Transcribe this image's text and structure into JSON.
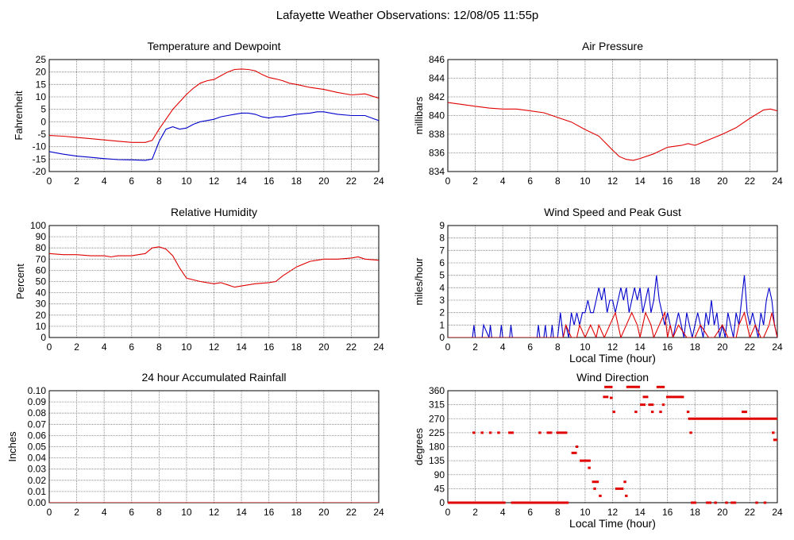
{
  "page": {
    "title": "Lafayette Weather Observations: 12/08/05 11:55p"
  },
  "colors": {
    "red": "#e00000",
    "blue": "#0000cc",
    "grid": "#777777",
    "frame": "#000000"
  },
  "chart_data": [
    {
      "id": "temp",
      "type": "line",
      "title": "Temperature and Dewpoint",
      "xlabel": "",
      "ylabel": "Fahrenheit",
      "xlim": [
        0,
        24
      ],
      "ylim": [
        -20,
        25
      ],
      "xticks": [
        0,
        2,
        4,
        6,
        8,
        10,
        12,
        14,
        16,
        18,
        20,
        22,
        24
      ],
      "yticks": [
        -20,
        -15,
        -10,
        -5,
        0,
        5,
        10,
        15,
        20,
        25
      ],
      "grid": true,
      "series": [
        {
          "color": "#e00000",
          "x": [
            0,
            1,
            2,
            3,
            4,
            5,
            6,
            7,
            7.5,
            8,
            8.5,
            9,
            9.5,
            10,
            10.5,
            11,
            11.5,
            12,
            12.5,
            13,
            13.5,
            14,
            14.5,
            15,
            15.5,
            16,
            16.5,
            17,
            17.5,
            18,
            19,
            20,
            21,
            22,
            23,
            24
          ],
          "y": [
            -5.5,
            -5.8,
            -6.3,
            -6.8,
            -7.3,
            -7.8,
            -8.3,
            -8.3,
            -7.5,
            -3,
            1,
            5,
            8,
            11,
            13.5,
            15.5,
            16.5,
            17,
            18.5,
            20,
            21,
            21.2,
            21,
            20.5,
            19,
            17.8,
            17.2,
            16.5,
            15.5,
            15,
            13.8,
            13,
            11.8,
            10.8,
            11.2,
            9.5
          ]
        },
        {
          "color": "#0000cc",
          "x": [
            0,
            1,
            2,
            3,
            4,
            5,
            6,
            7,
            7.5,
            8,
            8.5,
            9,
            9.5,
            10,
            10.5,
            11,
            11.5,
            12,
            12.5,
            13,
            13.5,
            14,
            14.5,
            15,
            15.5,
            16,
            16.5,
            17,
            18,
            19,
            19.5,
            20,
            20.5,
            21,
            22,
            23,
            24
          ],
          "y": [
            -12,
            -13,
            -13.8,
            -14.3,
            -14.8,
            -15.2,
            -15.3,
            -15.5,
            -15,
            -8,
            -3,
            -2,
            -3,
            -2.5,
            -1,
            0,
            0.5,
            1,
            2,
            2.5,
            3,
            3.5,
            3.5,
            3,
            2,
            1.5,
            2,
            2,
            3,
            3.5,
            4,
            4,
            3.5,
            3,
            2.5,
            2.5,
            0.5
          ]
        }
      ]
    },
    {
      "id": "pressure",
      "type": "line",
      "title": "Air Pressure",
      "xlabel": "",
      "ylabel": "millibars",
      "xlim": [
        0,
        24
      ],
      "ylim": [
        834,
        846
      ],
      "xticks": [
        0,
        2,
        4,
        6,
        8,
        10,
        12,
        14,
        16,
        18,
        20,
        22,
        24
      ],
      "yticks": [
        834,
        836,
        838,
        840,
        842,
        844,
        846
      ],
      "grid": true,
      "series": [
        {
          "color": "#e00000",
          "x": [
            0,
            1,
            2,
            3,
            4,
            5,
            6,
            7,
            8,
            9,
            10,
            11,
            12,
            12.5,
            13,
            13.5,
            14,
            15,
            16,
            17,
            17.5,
            18,
            19,
            20,
            21,
            22,
            23,
            23.5,
            24
          ],
          "y": [
            841.4,
            841.2,
            841,
            840.8,
            840.7,
            840.7,
            840.5,
            840.3,
            839.8,
            839.3,
            838.5,
            837.8,
            836.3,
            835.6,
            835.3,
            835.2,
            835.4,
            835.9,
            836.6,
            836.8,
            837,
            836.8,
            837.4,
            838,
            838.7,
            839.7,
            840.6,
            840.7,
            840.5
          ]
        }
      ]
    },
    {
      "id": "humidity",
      "type": "line",
      "title": "Relative Humidity",
      "xlabel": "",
      "ylabel": "Percent",
      "xlim": [
        0,
        24
      ],
      "ylim": [
        0,
        100
      ],
      "xticks": [
        0,
        2,
        4,
        6,
        8,
        10,
        12,
        14,
        16,
        18,
        20,
        22,
        24
      ],
      "yticks": [
        0,
        10,
        20,
        30,
        40,
        50,
        60,
        70,
        80,
        90,
        100
      ],
      "grid": true,
      "series": [
        {
          "color": "#e00000",
          "x": [
            0,
            1,
            2,
            3,
            4,
            4.5,
            5,
            6,
            7,
            7.5,
            8,
            8.5,
            9,
            9.5,
            10,
            11,
            12,
            12.5,
            13,
            13.5,
            14,
            15,
            16,
            16.5,
            17,
            18,
            19,
            20,
            21,
            22,
            22.5,
            23,
            24
          ],
          "y": [
            75,
            74,
            74,
            73,
            73,
            72,
            73,
            73,
            75,
            80,
            81,
            79,
            73,
            62,
            53,
            50,
            48,
            49,
            47,
            45,
            46,
            48,
            49,
            50,
            55,
            63,
            68,
            70,
            70,
            71,
            72,
            70,
            69
          ]
        }
      ]
    },
    {
      "id": "wind",
      "type": "line",
      "title": "Wind Speed and Peak Gust",
      "xlabel": "Local Time (hour)",
      "ylabel": "miles/hour",
      "xlim": [
        0,
        24
      ],
      "ylim": [
        0,
        9
      ],
      "xticks": [
        0,
        2,
        4,
        6,
        8,
        10,
        12,
        14,
        16,
        18,
        20,
        22,
        24
      ],
      "yticks": [
        0,
        1,
        2,
        3,
        4,
        5,
        6,
        7,
        8,
        9
      ],
      "grid": true,
      "series": [
        {
          "color": "#0000cc",
          "x": [
            0,
            1.8,
            1.9,
            2.0,
            2.5,
            2.6,
            3.0,
            3.1,
            3.2,
            3.8,
            3.9,
            4.0,
            4.5,
            4.6,
            4.7,
            5.0,
            6.0,
            6.5,
            6.6,
            6.7,
            7.0,
            7.1,
            7.2,
            7.5,
            7.6,
            7.7,
            8.0,
            8.2,
            8.4,
            8.6,
            8.8,
            9.0,
            9.2,
            9.4,
            9.6,
            9.8,
            10.0,
            10.2,
            10.4,
            10.6,
            10.8,
            11.0,
            11.2,
            11.4,
            11.6,
            11.8,
            12.0,
            12.2,
            12.4,
            12.6,
            12.8,
            13.0,
            13.2,
            13.4,
            13.6,
            13.8,
            14.0,
            14.2,
            14.4,
            14.6,
            14.8,
            15.0,
            15.2,
            15.4,
            15.6,
            15.8,
            16.0,
            16.2,
            16.4,
            16.6,
            16.8,
            17.0,
            17.2,
            17.4,
            17.6,
            17.8,
            18.0,
            18.2,
            18.4,
            18.6,
            18.8,
            19.0,
            19.2,
            19.4,
            19.6,
            19.8,
            20.0,
            20.2,
            20.4,
            20.6,
            20.8,
            21.0,
            21.2,
            21.4,
            21.6,
            21.8,
            22.0,
            22.2,
            22.4,
            22.6,
            22.8,
            23.0,
            23.2,
            23.4,
            23.6,
            23.8,
            24.0
          ],
          "y": [
            0,
            0,
            1,
            0,
            0,
            1,
            0,
            1,
            0,
            0,
            1,
            0,
            0,
            1,
            0,
            0,
            0,
            0,
            1,
            0,
            0,
            1,
            0,
            0,
            1,
            0,
            0,
            2,
            0,
            1,
            0,
            2,
            1,
            2,
            1,
            2,
            2,
            3,
            2,
            2,
            3,
            4,
            3,
            4,
            2,
            3,
            3,
            2,
            3,
            4,
            3,
            4,
            2,
            3,
            4,
            3,
            4,
            2,
            3,
            4,
            2,
            3,
            5,
            3,
            2,
            1,
            2,
            1,
            0,
            1,
            2,
            1,
            0,
            2,
            1,
            0,
            1,
            2,
            1,
            0,
            2,
            1,
            3,
            1,
            2,
            0,
            1,
            0,
            2,
            1,
            0,
            2,
            1,
            3,
            5,
            2,
            1,
            2,
            1,
            0,
            2,
            1,
            3,
            4,
            3,
            1,
            0
          ]
        },
        {
          "color": "#e00000",
          "x": [
            0,
            8.0,
            8.4,
            8.6,
            9.0,
            9.4,
            9.6,
            10.0,
            10.4,
            10.8,
            11.0,
            11.4,
            11.8,
            12.2,
            12.6,
            13.0,
            13.4,
            13.8,
            14.0,
            14.2,
            14.4,
            14.8,
            15.0,
            15.4,
            15.8,
            16.0,
            16.2,
            16.4,
            16.8,
            17.4,
            18.0,
            18.4,
            19.0,
            19.4,
            20.0,
            20.4,
            21.0,
            21.2,
            21.6,
            22.0,
            22.4,
            22.8,
            23.0,
            23.4,
            23.6,
            23.8,
            24.0
          ],
          "y": [
            0,
            0,
            0,
            1,
            0,
            0,
            1,
            0,
            1,
            0,
            1,
            0,
            1,
            2,
            0,
            1,
            2,
            1,
            0,
            1,
            2,
            1,
            0,
            1,
            2,
            0,
            1,
            0,
            1,
            0,
            0,
            1,
            0,
            0,
            1,
            0,
            0,
            1,
            2,
            0,
            1,
            0,
            0,
            1,
            2,
            1,
            0
          ]
        }
      ]
    },
    {
      "id": "rain",
      "type": "line",
      "title": "24 hour Accumulated Rainfall",
      "xlabel": "",
      "ylabel": "Inches",
      "xlim": [
        0,
        24
      ],
      "ylim": [
        0,
        0.1
      ],
      "xticks": [
        0,
        2,
        4,
        6,
        8,
        10,
        12,
        14,
        16,
        18,
        20,
        22,
        24
      ],
      "yticks": [
        "0.00",
        "0.01",
        "0.02",
        "0.03",
        "0.04",
        "0.05",
        "0.06",
        "0.07",
        "0.08",
        "0.09",
        "0.10"
      ],
      "grid": true,
      "series": [
        {
          "color": "#e00000",
          "x": [
            0,
            24
          ],
          "y": [
            0,
            0
          ]
        }
      ]
    },
    {
      "id": "direction",
      "type": "scatter",
      "title": "Wind Direction",
      "xlabel": "Local Time (hour)",
      "ylabel": "degrees",
      "xlim": [
        0,
        24
      ],
      "ylim": [
        0,
        360
      ],
      "xticks": [
        0,
        2,
        4,
        6,
        8,
        10,
        12,
        14,
        16,
        18,
        20,
        22,
        24
      ],
      "yticks": [
        0,
        45,
        90,
        135,
        180,
        225,
        270,
        315,
        360
      ],
      "grid": true,
      "segments": [
        {
          "x0": 0,
          "x1": 4.2,
          "y": 0
        },
        {
          "x0": 4.6,
          "x1": 8.8,
          "y": 0
        },
        {
          "x0": 1.8,
          "x1": 2.0,
          "y": 225
        },
        {
          "x0": 2.4,
          "x1": 2.6,
          "y": 225
        },
        {
          "x0": 3.0,
          "x1": 3.2,
          "y": 225
        },
        {
          "x0": 3.6,
          "x1": 3.8,
          "y": 225
        },
        {
          "x0": 4.4,
          "x1": 4.8,
          "y": 225
        },
        {
          "x0": 6.6,
          "x1": 6.8,
          "y": 225
        },
        {
          "x0": 7.2,
          "x1": 7.6,
          "y": 225
        },
        {
          "x0": 7.9,
          "x1": 8.7,
          "y": 225
        },
        {
          "x0": 9.0,
          "x1": 9.4,
          "y": 160
        },
        {
          "x0": 9.3,
          "x1": 9.5,
          "y": 180
        },
        {
          "x0": 9.6,
          "x1": 10.4,
          "y": 135
        },
        {
          "x0": 10.2,
          "x1": 10.4,
          "y": 112
        },
        {
          "x0": 10.5,
          "x1": 11.0,
          "y": 67
        },
        {
          "x0": 10.6,
          "x1": 10.8,
          "y": 45
        },
        {
          "x0": 11.0,
          "x1": 11.2,
          "y": 22
        },
        {
          "x0": 11.4,
          "x1": 12.0,
          "y": 375
        },
        {
          "x0": 11.3,
          "x1": 11.7,
          "y": 340
        },
        {
          "x0": 11.8,
          "x1": 12.0,
          "y": 337
        },
        {
          "x0": 12.0,
          "x1": 12.2,
          "y": 292
        },
        {
          "x0": 12.2,
          "x1": 12.8,
          "y": 45
        },
        {
          "x0": 12.8,
          "x1": 13.0,
          "y": 67
        },
        {
          "x0": 12.9,
          "x1": 13.1,
          "y": 22
        },
        {
          "x0": 13.0,
          "x1": 14.0,
          "y": 375
        },
        {
          "x0": 13.6,
          "x1": 13.8,
          "y": 292
        },
        {
          "x0": 14.0,
          "x1": 14.4,
          "y": 315
        },
        {
          "x0": 14.2,
          "x1": 14.6,
          "y": 340
        },
        {
          "x0": 14.6,
          "x1": 15.0,
          "y": 315
        },
        {
          "x0": 14.8,
          "x1": 15.0,
          "y": 292
        },
        {
          "x0": 15.2,
          "x1": 15.8,
          "y": 375
        },
        {
          "x0": 15.4,
          "x1": 15.6,
          "y": 292
        },
        {
          "x0": 15.6,
          "x1": 15.8,
          "y": 315
        },
        {
          "x0": 15.9,
          "x1": 17.2,
          "y": 340
        },
        {
          "x0": 17.4,
          "x1": 17.6,
          "y": 292
        },
        {
          "x0": 17.5,
          "x1": 24.0,
          "y": 270
        },
        {
          "x0": 17.6,
          "x1": 17.8,
          "y": 225
        },
        {
          "x0": 17.7,
          "x1": 18.1,
          "y": 0
        },
        {
          "x0": 18.8,
          "x1": 19.2,
          "y": 0
        },
        {
          "x0": 19.4,
          "x1": 19.6,
          "y": 0
        },
        {
          "x0": 20.2,
          "x1": 20.4,
          "y": 0
        },
        {
          "x0": 20.6,
          "x1": 21.0,
          "y": 0
        },
        {
          "x0": 22.4,
          "x1": 22.6,
          "y": 0
        },
        {
          "x0": 23.0,
          "x1": 23.2,
          "y": 0
        },
        {
          "x0": 21.4,
          "x1": 21.8,
          "y": 292
        },
        {
          "x0": 23.6,
          "x1": 23.8,
          "y": 225
        },
        {
          "x0": 23.7,
          "x1": 24.0,
          "y": 202
        }
      ]
    }
  ]
}
